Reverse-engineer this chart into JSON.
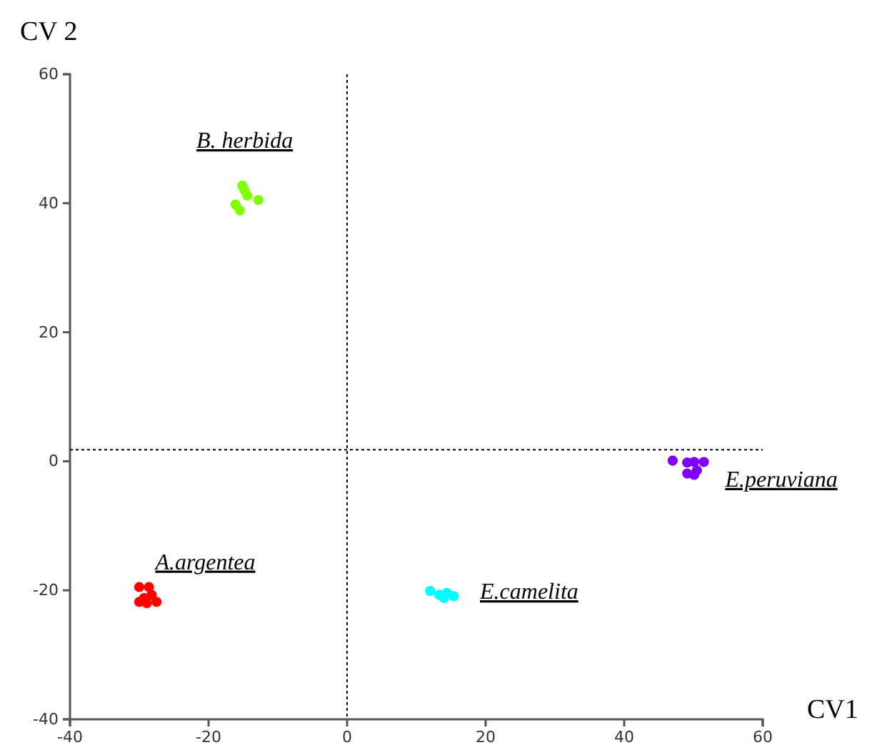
{
  "chart_data": {
    "type": "scatter",
    "xlabel": "CV1",
    "ylabel": "CV 2",
    "xlim": [
      -40,
      60
    ],
    "ylim": [
      -40,
      60
    ],
    "xticks": [
      -40,
      -20,
      0,
      20,
      40,
      60
    ],
    "yticks": [
      -40,
      -20,
      0,
      20,
      40,
      60
    ],
    "marker": "circle",
    "grid": false,
    "legend": false,
    "ref_lines": [
      {
        "axis": "x",
        "value": 0,
        "line_style": "dotted",
        "color": "#000000"
      },
      {
        "axis": "y",
        "value": 1.8,
        "line_style": "dotted",
        "color": "#000000"
      }
    ],
    "series": [
      {
        "name": "B. herbida",
        "color": "#80ff00",
        "x": [
          -15.1,
          -14.8,
          -16.1,
          -15.5,
          -12.8,
          -14.4
        ],
        "values": [
          42.7,
          42.0,
          39.8,
          38.9,
          40.5,
          41.2
        ]
      },
      {
        "name": "A.argentea",
        "color": "#ff0000",
        "x": [
          -30.0,
          -28.6,
          -28.2,
          -30.0,
          -28.9,
          -27.5,
          -29.3
        ],
        "values": [
          -19.5,
          -19.5,
          -20.7,
          -21.8,
          -22.0,
          -21.8,
          -21.2
        ]
      },
      {
        "name": "E.camelita",
        "color": "#00ffff",
        "x": [
          12.0,
          13.3,
          14.4,
          15.4,
          14.0
        ],
        "values": [
          -20.1,
          -20.7,
          -20.4,
          -20.9,
          -21.2
        ]
      },
      {
        "name": "E.peruviana",
        "color": "#8000ff",
        "x": [
          47.0,
          49.1,
          50.1,
          51.5,
          50.5,
          49.1,
          50.1
        ],
        "values": [
          0.1,
          -0.2,
          -0.1,
          -0.1,
          -1.4,
          -1.9,
          -2.1
        ]
      }
    ]
  }
}
